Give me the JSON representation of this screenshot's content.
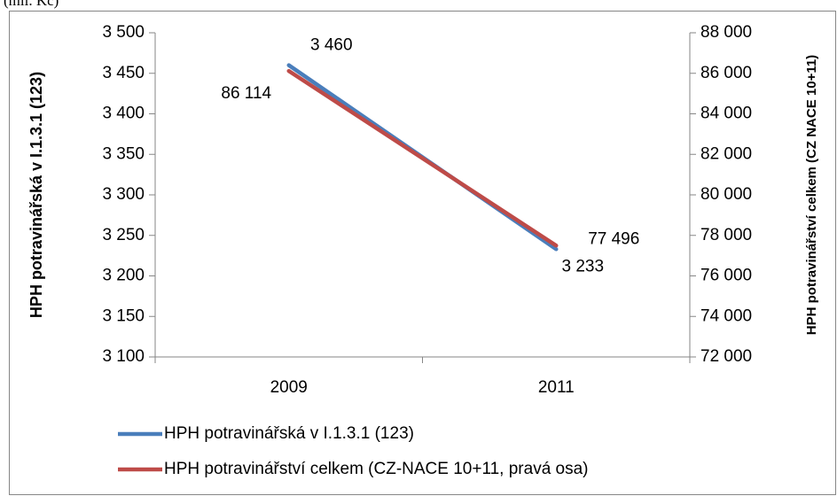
{
  "chart_data": {
    "type": "line",
    "subtitle": "(mil. Kč)",
    "categories": [
      "2009",
      "2011"
    ],
    "y_label": "HPH potravinářská v I.1.3.1 (123)",
    "y2_label": "HPH potravinářství celkem (CZ NACE 10+11)",
    "series": [
      {
        "name": "HPH potravinářská v I.1.3.1 (123)",
        "color": "#4a7ebb",
        "values": [
          3460,
          3233
        ],
        "value_labels": [
          "3 460",
          "3 233"
        ]
      },
      {
        "name": "HPH potravinářství celkem (CZ-NACE 10+11, pravá osa)",
        "color": "#be4b48",
        "axis": "y2",
        "values": [
          86114,
          77496
        ],
        "value_labels": [
          "86 114",
          "77 496"
        ]
      }
    ],
    "ylim": [
      3100,
      3500
    ],
    "yticks": [
      {
        "value": 3100,
        "label": "3 100"
      },
      {
        "value": 3150,
        "label": "3 150"
      },
      {
        "value": 3200,
        "label": "3 200"
      },
      {
        "value": 3250,
        "label": "3 250"
      },
      {
        "value": 3300,
        "label": "3 300"
      },
      {
        "value": 3350,
        "label": "3 350"
      },
      {
        "value": 3400,
        "label": "3 400"
      },
      {
        "value": 3450,
        "label": "3 450"
      },
      {
        "value": 3500,
        "label": "3 500"
      }
    ],
    "y2lim": [
      72000,
      88000
    ],
    "y2ticks": [
      {
        "value": 72000,
        "label": "72 000"
      },
      {
        "value": 74000,
        "label": "74 000"
      },
      {
        "value": 76000,
        "label": "76 000"
      },
      {
        "value": 78000,
        "label": "78 000"
      },
      {
        "value": 80000,
        "label": "80 000"
      },
      {
        "value": 82000,
        "label": "82 000"
      },
      {
        "value": 84000,
        "label": "84 000"
      },
      {
        "value": 86000,
        "label": "86 000"
      },
      {
        "value": 88000,
        "label": "88 000"
      }
    ],
    "legend": "bottom"
  }
}
